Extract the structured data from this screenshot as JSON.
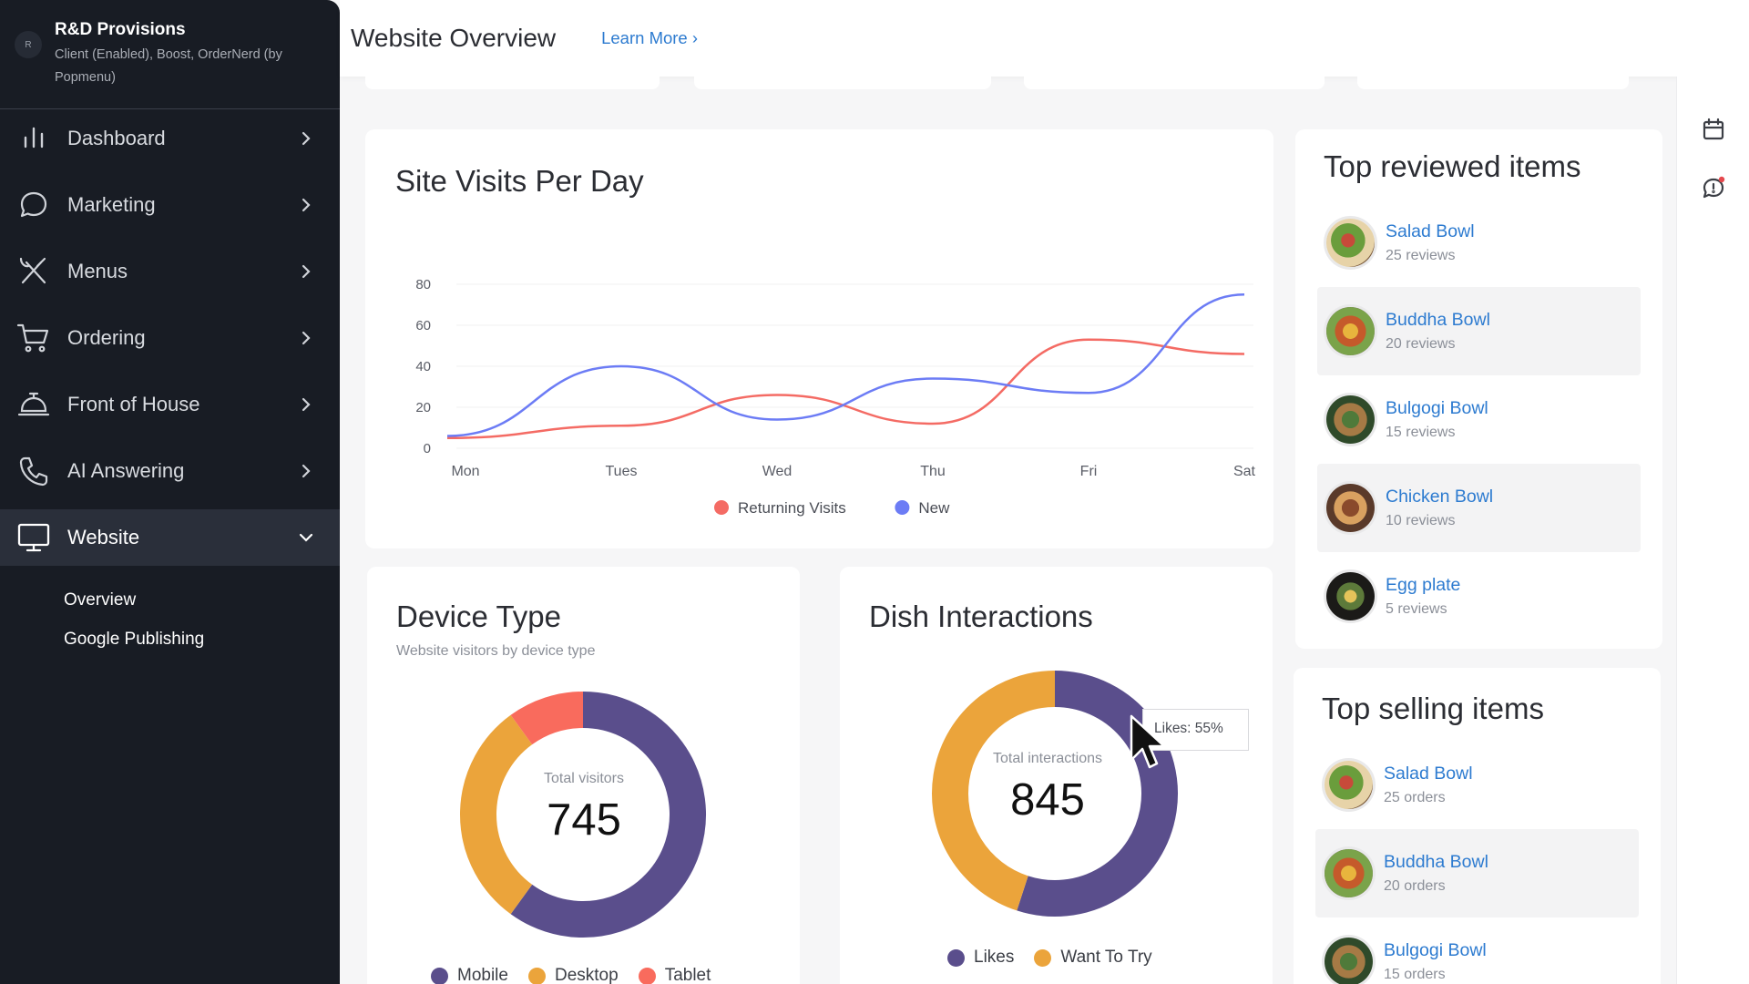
{
  "sidebar": {
    "org_name": "R&D Provisions",
    "org_sub": "Client (Enabled), Boost, OrderNerd (by Popmenu)",
    "logo_glyph": "R",
    "items": [
      {
        "label": "Dashboard",
        "icon": "bar-chart-icon"
      },
      {
        "label": "Marketing",
        "icon": "chat-bubble-icon"
      },
      {
        "label": "Menus",
        "icon": "utensils-icon"
      },
      {
        "label": "Ordering",
        "icon": "cart-icon"
      },
      {
        "label": "Front of House",
        "icon": "service-bell-icon"
      },
      {
        "label": "AI Answering",
        "icon": "phone-icon"
      },
      {
        "label": "Website",
        "icon": "monitor-icon"
      }
    ],
    "subitems": [
      "Overview",
      "Google Publishing"
    ]
  },
  "header": {
    "title": "Website Overview",
    "learn_more": "Learn More ›"
  },
  "visits": {
    "title": "Site Visits Per Day"
  },
  "device": {
    "title": "Device Type",
    "subtitle": "Website visitors by device type",
    "caption": "Total visitors",
    "total": "745",
    "legend": [
      "Mobile",
      "Desktop",
      "Tablet"
    ]
  },
  "dish": {
    "title": "Dish Interactions",
    "caption": "Total interactions",
    "total": "845",
    "tooltip": "Likes: 55%",
    "legend": [
      "Likes",
      "Want To Try"
    ]
  },
  "top_reviewed": {
    "title": "Top reviewed items",
    "items": [
      {
        "name": "Salad Bowl",
        "meta": "25 reviews"
      },
      {
        "name": "Buddha Bowl",
        "meta": "20 reviews"
      },
      {
        "name": "Bulgogi Bowl",
        "meta": "15 reviews"
      },
      {
        "name": "Chicken Bowl",
        "meta": "10 reviews"
      },
      {
        "name": "Egg plate",
        "meta": "5 reviews"
      }
    ]
  },
  "top_selling": {
    "title": "Top selling items",
    "items": [
      {
        "name": "Salad Bowl",
        "meta": "25 orders"
      },
      {
        "name": "Buddha Bowl",
        "meta": "20 orders"
      },
      {
        "name": "Bulgogi Bowl",
        "meta": "15 orders"
      }
    ]
  },
  "colors": {
    "sidebar_bg": "#181c24",
    "accent_link": "#2d7bd0",
    "returning": "#f46b64",
    "new": "#6c7cf5",
    "purple": "#5a4e8c",
    "orange": "#eba43b",
    "coral": "#f96b5d"
  },
  "chart_data": [
    {
      "type": "line",
      "title": "Site Visits Per Day",
      "categories": [
        "Mon",
        "Tues",
        "Wed",
        "Thu",
        "Fri",
        "Sat"
      ],
      "ylim": [
        0,
        80
      ],
      "yticks": [
        0,
        20,
        40,
        60,
        80
      ],
      "series": [
        {
          "name": "Returning Visits",
          "color": "#f46b64",
          "values": [
            5,
            11,
            26,
            12,
            53,
            46
          ]
        },
        {
          "name": "New",
          "color": "#6c7cf5",
          "values": [
            6,
            40,
            14,
            34,
            27,
            75
          ]
        }
      ],
      "legend": "bottom-center"
    },
    {
      "type": "pie",
      "title": "Device Type",
      "labels": [
        "Mobile",
        "Desktop",
        "Tablet"
      ],
      "values": [
        60,
        30,
        10
      ],
      "colors": [
        "#5a4e8c",
        "#eba43b",
        "#f96b5d"
      ]
    },
    {
      "type": "pie",
      "title": "Dish Interactions",
      "labels": [
        "Likes",
        "Want To Try"
      ],
      "values": [
        55,
        45
      ],
      "colors": [
        "#5a4e8c",
        "#eba43b"
      ]
    }
  ]
}
